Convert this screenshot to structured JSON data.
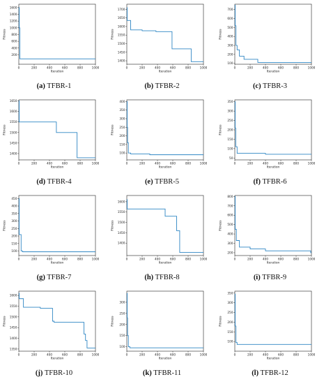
{
  "style": {
    "line_color": "#2f86c4",
    "axis_color": "#222222"
  },
  "chart_data": [
    {
      "type": "line",
      "caption_letter": "(a)",
      "caption_name": "TFBR-1",
      "xlabel": "Iteration",
      "ylabel": "Fitness",
      "xlim": [
        0,
        1000
      ],
      "ylim": [
        -80,
        1700
      ],
      "xticks": [
        0,
        200,
        400,
        600,
        800,
        1000
      ],
      "yticks": [
        200,
        400,
        600,
        800,
        1000,
        1200,
        1400,
        1600
      ],
      "x": [
        0,
        6,
        6,
        14,
        14,
        1000
      ],
      "y": [
        1600,
        1600,
        1000,
        1000,
        80,
        80
      ]
    },
    {
      "type": "line",
      "caption_letter": "(b)",
      "caption_name": "TFBR-2",
      "xlabel": "Iteration",
      "ylabel": "Fitness",
      "xlim": [
        0,
        1000
      ],
      "ylim": [
        1380,
        1730
      ],
      "xticks": [
        0,
        200,
        400,
        600,
        800,
        1000
      ],
      "yticks": [
        1400,
        1450,
        1500,
        1550,
        1600,
        1650,
        1700
      ],
      "x": [
        0,
        5,
        5,
        50,
        50,
        200,
        200,
        380,
        380,
        590,
        590,
        840,
        840,
        1000
      ],
      "y": [
        1710,
        1710,
        1635,
        1635,
        1580,
        1580,
        1575,
        1575,
        1570,
        1570,
        1470,
        1470,
        1395,
        1395
      ]
    },
    {
      "type": "line",
      "caption_letter": "(c)",
      "caption_name": "TFBR-3",
      "xlabel": "Iteration",
      "ylabel": "Fitness",
      "xlim": [
        0,
        1000
      ],
      "ylim": [
        90,
        760
      ],
      "xticks": [
        0,
        200,
        400,
        600,
        800,
        1000
      ],
      "yticks": [
        100,
        200,
        300,
        400,
        500,
        600,
        700
      ],
      "x": [
        0,
        5,
        5,
        15,
        15,
        30,
        30,
        60,
        60,
        120,
        120,
        300,
        300,
        1000
      ],
      "y": [
        750,
        750,
        520,
        520,
        300,
        300,
        250,
        250,
        180,
        180,
        145,
        145,
        110,
        110
      ]
    },
    {
      "type": "line",
      "caption_letter": "(d)",
      "caption_name": "TFBR-4",
      "xlabel": "Iteration",
      "ylabel": "Fitness",
      "xlim": [
        0,
        1000
      ],
      "ylim": [
        1370,
        1655
      ],
      "xticks": [
        0,
        200,
        400,
        600,
        800,
        1000
      ],
      "yticks": [
        1400,
        1450,
        1500,
        1550,
        1600,
        1650
      ],
      "x": [
        0,
        5,
        5,
        490,
        490,
        760,
        760,
        1000
      ],
      "y": [
        1650,
        1650,
        1550,
        1550,
        1500,
        1500,
        1380,
        1380
      ]
    },
    {
      "type": "line",
      "caption_letter": "(e)",
      "caption_name": "TFBR-5",
      "xlabel": "Iteration",
      "ylabel": "Fitness",
      "xlim": [
        0,
        1000
      ],
      "ylim": [
        60,
        410
      ],
      "xticks": [
        0,
        200,
        400,
        600,
        800,
        1000
      ],
      "yticks": [
        100,
        150,
        200,
        250,
        300,
        350,
        400
      ],
      "x": [
        0,
        5,
        5,
        10,
        10,
        20,
        20,
        50,
        50,
        300,
        300,
        1000
      ],
      "y": [
        400,
        400,
        250,
        250,
        160,
        160,
        100,
        100,
        95,
        95,
        90,
        90
      ]
    },
    {
      "type": "line",
      "caption_letter": "(f)",
      "caption_name": "TFBR-6",
      "xlabel": "Iteration",
      "ylabel": "Fitness",
      "xlim": [
        0,
        1000
      ],
      "ylim": [
        40,
        360
      ],
      "xticks": [
        0,
        200,
        400,
        600,
        800,
        1000
      ],
      "yticks": [
        50,
        100,
        150,
        200,
        250,
        300,
        350
      ],
      "x": [
        0,
        5,
        5,
        12,
        12,
        30,
        30,
        400,
        400,
        1000
      ],
      "y": [
        350,
        350,
        210,
        210,
        110,
        110,
        75,
        75,
        70,
        70
      ]
    },
    {
      "type": "line",
      "caption_letter": "(g)",
      "caption_name": "TFBR-7",
      "xlabel": "Iteration",
      "ylabel": "Fitness",
      "xlim": [
        0,
        1000
      ],
      "ylim": [
        70,
        470
      ],
      "xticks": [
        0,
        200,
        400,
        600,
        800,
        1000
      ],
      "yticks": [
        100,
        150,
        200,
        250,
        300,
        350,
        400,
        450
      ],
      "x": [
        0,
        5,
        5,
        30,
        30,
        50,
        50,
        1000
      ],
      "y": [
        450,
        450,
        210,
        210,
        100,
        100,
        95,
        95
      ]
    },
    {
      "type": "line",
      "caption_letter": "(h)",
      "caption_name": "TFBR-8",
      "xlabel": "Iteration",
      "ylabel": "Fitness",
      "xlim": [
        0,
        1000
      ],
      "ylim": [
        1340,
        1630
      ],
      "xticks": [
        0,
        200,
        400,
        600,
        800,
        1000
      ],
      "yticks": [
        1400,
        1450,
        1500,
        1550,
        1600
      ],
      "x": [
        0,
        5,
        5,
        500,
        500,
        650,
        650,
        690,
        690,
        1000
      ],
      "y": [
        1610,
        1610,
        1565,
        1565,
        1530,
        1530,
        1460,
        1460,
        1355,
        1355
      ]
    },
    {
      "type": "line",
      "caption_letter": "(i)",
      "caption_name": "TFBR-9",
      "xlabel": "Iteration",
      "ylabel": "Fitness",
      "xlim": [
        0,
        1000
      ],
      "ylim": [
        170,
        810
      ],
      "xticks": [
        0,
        200,
        400,
        600,
        800,
        1000
      ],
      "yticks": [
        200,
        300,
        400,
        500,
        600,
        700,
        800
      ],
      "x": [
        0,
        5,
        5,
        20,
        20,
        60,
        60,
        200,
        200,
        400,
        400,
        990,
        990,
        1000
      ],
      "y": [
        800,
        800,
        450,
        450,
        330,
        330,
        260,
        260,
        240,
        240,
        220,
        220,
        200,
        200
      ]
    },
    {
      "type": "line",
      "caption_letter": "(j)",
      "caption_name": "TFBR-10",
      "xlabel": "Iteration",
      "ylabel": "Fitness",
      "xlim": [
        0,
        1000
      ],
      "ylim": [
        1340,
        1620
      ],
      "xticks": [
        0,
        200,
        400,
        600,
        800,
        1000
      ],
      "yticks": [
        1350,
        1400,
        1450,
        1500,
        1550,
        1600
      ],
      "x": [
        0,
        5,
        5,
        60,
        60,
        280,
        280,
        440,
        440,
        460,
        460,
        850,
        850,
        870,
        870,
        890,
        890,
        1000
      ],
      "y": [
        1610,
        1610,
        1585,
        1585,
        1545,
        1545,
        1540,
        1540,
        1480,
        1480,
        1475,
        1475,
        1420,
        1420,
        1390,
        1390,
        1355,
        1355
      ]
    },
    {
      "type": "line",
      "caption_letter": "(k)",
      "caption_name": "TFBR-11",
      "xlabel": "Iteration",
      "ylabel": "Fitness",
      "xlim": [
        0,
        1000
      ],
      "ylim": [
        80,
        350
      ],
      "xticks": [
        0,
        200,
        400,
        600,
        800,
        1000
      ],
      "yticks": [
        100,
        150,
        200,
        250,
        300
      ],
      "x": [
        0,
        5,
        5,
        10,
        10,
        20,
        20,
        40,
        40,
        1000
      ],
      "y": [
        340,
        340,
        230,
        230,
        150,
        150,
        100,
        100,
        95,
        95
      ]
    },
    {
      "type": "line",
      "caption_letter": "(l)",
      "caption_name": "TFBR-12",
      "xlabel": "Iteration",
      "ylabel": "Fitness",
      "xlim": [
        0,
        1000
      ],
      "ylim": [
        50,
        360
      ],
      "xticks": [
        0,
        200,
        400,
        600,
        800,
        1000
      ],
      "yticks": [
        100,
        150,
        200,
        250,
        300,
        350
      ],
      "x": [
        0,
        5,
        5,
        15,
        15,
        30,
        30,
        1000
      ],
      "y": [
        345,
        345,
        180,
        180,
        95,
        95,
        85,
        85
      ]
    }
  ]
}
